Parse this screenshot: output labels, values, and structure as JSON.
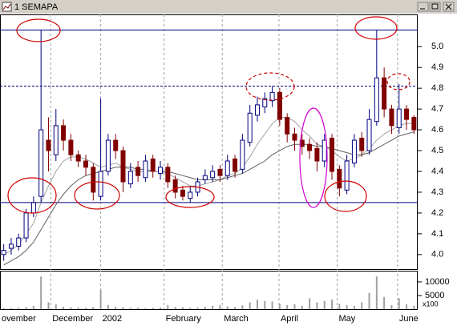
{
  "window_title": "1 SEMAPA",
  "chart_data": {
    "type": "candlestick",
    "xlim": [
      -0.5,
      55.5
    ],
    "xticks": [
      {
        "value": -0.5,
        "label": "ovember"
      },
      {
        "value": 6.3,
        "label": "December"
      },
      {
        "value": 13,
        "label": "2002"
      },
      {
        "value": 21.5,
        "label": "February"
      },
      {
        "value": 29.3,
        "label": "March"
      },
      {
        "value": 36.9,
        "label": "April"
      },
      {
        "value": 44.7,
        "label": "May"
      },
      {
        "value": 52.8,
        "label": "June"
      }
    ],
    "ylim": [
      3.93,
      5.155
    ],
    "yticks": [
      {
        "value": 4,
        "label": "4.0"
      },
      4.1,
      4.2,
      4.3,
      4.4,
      4.5,
      4.6,
      4.7,
      4.8,
      4.9,
      {
        "value": 5,
        "label": "5.0"
      }
    ],
    "open": [
      4.0,
      4.03,
      4.04,
      4.08,
      4.2,
      4.28,
      4.55,
      4.48,
      4.62,
      4.55,
      4.48,
      4.45,
      4.42,
      4.28,
      4.4,
      4.55,
      4.5,
      4.34,
      4.42,
      4.37,
      4.46,
      4.39,
      4.42,
      4.36,
      4.31,
      4.27,
      4.3,
      4.36,
      4.37,
      4.41,
      4.38,
      4.46,
      4.41,
      4.54,
      4.67,
      4.71,
      4.74,
      4.78,
      4.66,
      4.58,
      4.55,
      4.53,
      4.51,
      4.45,
      4.56,
      4.41,
      4.31,
      4.44,
      4.56,
      4.5,
      4.64,
      4.85,
      4.7,
      4.61,
      4.7,
      4.66
    ],
    "high": [
      4.05,
      4.08,
      4.1,
      4.22,
      4.28,
      5.08,
      4.66,
      4.7,
      4.65,
      4.58,
      4.5,
      4.48,
      4.44,
      4.75,
      4.58,
      4.58,
      4.52,
      4.44,
      4.45,
      4.48,
      4.48,
      4.45,
      4.44,
      4.38,
      4.33,
      4.33,
      4.37,
      4.41,
      4.43,
      4.43,
      4.48,
      4.48,
      4.58,
      4.72,
      4.76,
      4.78,
      4.81,
      4.8,
      4.68,
      4.61,
      4.58,
      4.56,
      4.54,
      4.58,
      4.58,
      4.43,
      4.48,
      4.58,
      4.59,
      4.7,
      5.08,
      4.9,
      4.72,
      4.82,
      4.72,
      4.67
    ],
    "low": [
      3.97,
      4.0,
      4.02,
      4.06,
      4.18,
      4.25,
      4.4,
      4.45,
      4.5,
      4.45,
      4.42,
      4.38,
      4.26,
      4.26,
      4.38,
      4.46,
      4.3,
      4.32,
      4.35,
      4.35,
      4.37,
      4.36,
      4.32,
      4.27,
      4.26,
      4.25,
      4.28,
      4.34,
      4.35,
      4.35,
      4.36,
      4.37,
      4.39,
      4.52,
      4.64,
      4.68,
      4.71,
      4.62,
      4.54,
      4.5,
      4.48,
      4.46,
      4.4,
      4.42,
      4.36,
      4.28,
      4.29,
      4.42,
      4.47,
      4.48,
      4.62,
      4.66,
      4.58,
      4.58,
      4.6,
      4.58
    ],
    "close": [
      4.02,
      4.05,
      4.08,
      4.2,
      4.25,
      4.6,
      4.5,
      4.62,
      4.55,
      4.48,
      4.45,
      4.42,
      4.3,
      4.4,
      4.55,
      4.5,
      4.35,
      4.4,
      4.38,
      4.45,
      4.4,
      4.42,
      4.35,
      4.3,
      4.28,
      4.3,
      4.35,
      4.38,
      4.4,
      4.38,
      4.45,
      4.4,
      4.55,
      4.68,
      4.72,
      4.75,
      4.78,
      4.65,
      4.58,
      4.55,
      4.52,
      4.5,
      4.45,
      4.55,
      4.4,
      4.32,
      4.45,
      4.55,
      4.5,
      4.65,
      4.85,
      4.7,
      4.62,
      4.7,
      4.65,
      4.6
    ],
    "up_color": "#ffffff",
    "down_color": "#800000",
    "up_stroke": "#000080",
    "moving_averages": [
      {
        "color": "#a0a0a0",
        "values": [
          4.0,
          4.02,
          4.05,
          4.1,
          4.15,
          4.25,
          4.33,
          4.4,
          4.45,
          4.47,
          4.47,
          4.46,
          4.44,
          4.42,
          4.43,
          4.44,
          4.42,
          4.41,
          4.4,
          4.4,
          4.4,
          4.4,
          4.39,
          4.37,
          4.35,
          4.33,
          4.33,
          4.34,
          4.35,
          4.36,
          4.38,
          4.39,
          4.42,
          4.47,
          4.53,
          4.58,
          4.63,
          4.66,
          4.66,
          4.64,
          4.6,
          4.57,
          4.53,
          4.52,
          4.5,
          4.47,
          4.45,
          4.46,
          4.48,
          4.51,
          4.55,
          4.58,
          4.6,
          4.62,
          4.63,
          4.63
        ]
      },
      {
        "color": "#606060",
        "values": [
          3.95,
          3.97,
          3.99,
          4.02,
          4.06,
          4.12,
          4.18,
          4.24,
          4.29,
          4.33,
          4.36,
          4.38,
          4.39,
          4.4,
          4.41,
          4.42,
          4.42,
          4.42,
          4.41,
          4.41,
          4.4,
          4.4,
          4.4,
          4.39,
          4.38,
          4.37,
          4.36,
          4.36,
          4.36,
          4.36,
          4.37,
          4.38,
          4.39,
          4.41,
          4.43,
          4.45,
          4.48,
          4.5,
          4.52,
          4.53,
          4.53,
          4.53,
          4.52,
          4.52,
          4.51,
          4.5,
          4.49,
          4.48,
          4.48,
          4.49,
          4.51,
          4.53,
          4.55,
          4.57,
          4.58,
          4.59
        ]
      }
    ],
    "hlines": [
      {
        "value": 5.08,
        "dashed": false
      },
      {
        "value": 4.81,
        "dashed": true
      },
      {
        "value": 4.25,
        "dashed": false
      }
    ],
    "hline_color": "#000080",
    "volume": [
      300,
      400,
      500,
      800,
      1200,
      12000,
      2500,
      1800,
      900,
      700,
      600,
      500,
      800,
      7000,
      1500,
      900,
      700,
      500,
      600,
      400,
      500,
      600,
      1500,
      800,
      700,
      500,
      600,
      900,
      1200,
      1500,
      1000,
      800,
      1400,
      2500,
      3500,
      3000,
      2800,
      2000,
      1500,
      1800,
      1200,
      4000,
      2500,
      3000,
      3500,
      2000,
      1500,
      1200,
      2500,
      6000,
      12000,
      4500,
      1500,
      4000,
      1800,
      1200
    ],
    "volume_color": "#a0a0a0",
    "volume_ylim": [
      0,
      14100
    ],
    "volume_ticks": [
      5000,
      10000
    ],
    "volume_unit": "x100",
    "grid": true
  }
}
